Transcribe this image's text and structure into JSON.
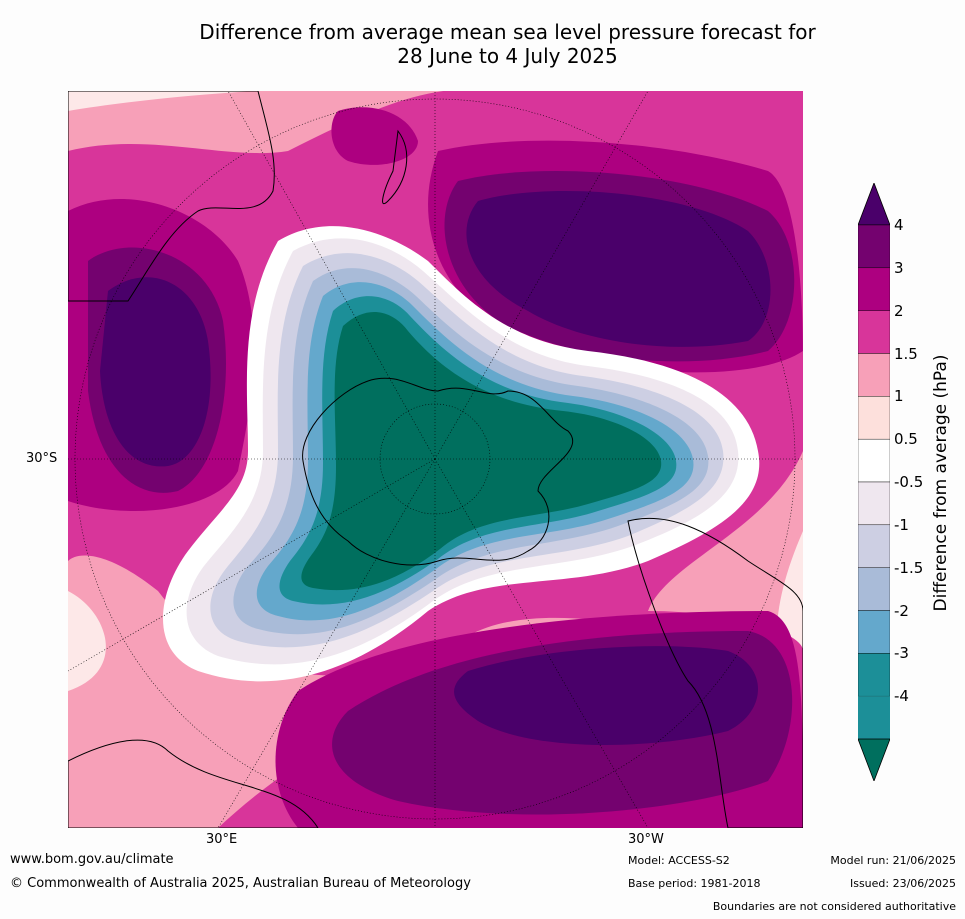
{
  "title_line1": "Difference from average mean sea level pressure forecast for",
  "title_line2": "28 June to 4 July 2025",
  "lat_label": "30°S",
  "lon_labels": {
    "east": "30°E",
    "west": "30°W"
  },
  "colorbar": {
    "label": "Difference from average (hPa)",
    "ticks": [
      "4",
      "3",
      "2",
      "1.5",
      "1",
      "0.5",
      "-0.5",
      "-1",
      "-1.5",
      "-2",
      "-3",
      "-4"
    ],
    "colors": [
      "#4a006a",
      "#74026f",
      "#ad0080",
      "#d8359a",
      "#f7a0b8",
      "#fde0dc",
      "#ffffff",
      "#efe7ef",
      "#cdcfe3",
      "#a9bbd8",
      "#64a8cc",
      "#1c8f98",
      "#006f5e"
    ]
  },
  "footer": {
    "url": "www.bom.gov.au/climate",
    "copyright": "© Commonwealth of Australia 2025, Australian Bureau of Meteorology",
    "model": "Model: ACCESS-S2",
    "base_period": "Base period: 1981-2018",
    "model_run": "Model run: 21/06/2025",
    "issued": "Issued: 23/06/2025",
    "disclaimer": "Boundaries are not considered authoritative"
  }
}
